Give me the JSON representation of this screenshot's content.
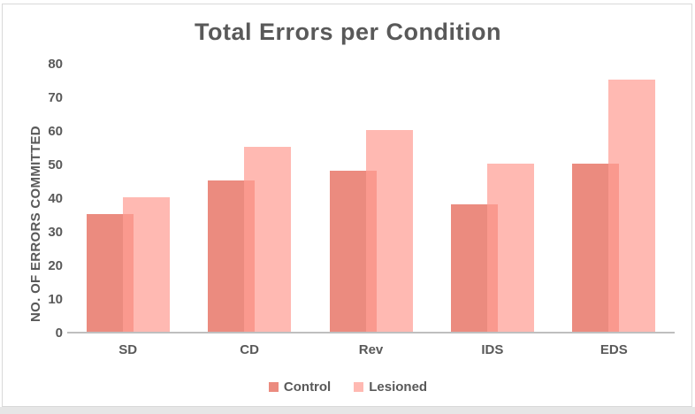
{
  "title": "Total Errors per Condition",
  "chart_data": {
    "type": "bar",
    "title": "Total Errors per Condition",
    "categories": [
      "SD",
      "CD",
      "Rev",
      "IDS",
      "EDS"
    ],
    "series": [
      {
        "name": "Control",
        "values": [
          35,
          45,
          48,
          38,
          50
        ],
        "color": "#EB8B7F"
      },
      {
        "name": "Lesioned",
        "values": [
          40,
          55,
          60,
          50,
          75
        ],
        "color": "rgba(255,158,148,0.72)"
      }
    ],
    "xlabel": "",
    "ylabel": "NO. OF ERRORS COMMITTED",
    "ylim": [
      0,
      80
    ],
    "ytick_step": 10,
    "yticks": [
      0,
      10,
      20,
      30,
      40,
      50,
      60,
      70,
      80
    ],
    "grid": false,
    "legend_position": "bottom",
    "bar_style": "overlapping",
    "colors": {
      "title_text": "#595959",
      "axis_text": "#595959",
      "axis_line": "#bfbfbf",
      "card_border": "#d9d9d9",
      "background": "#ffffff"
    }
  }
}
